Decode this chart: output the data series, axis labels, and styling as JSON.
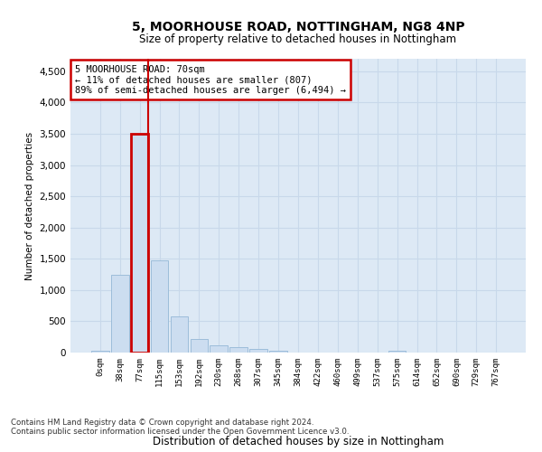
{
  "title_line1": "5, MOORHOUSE ROAD, NOTTINGHAM, NG8 4NP",
  "title_line2": "Size of property relative to detached houses in Nottingham",
  "xlabel": "Distribution of detached houses by size in Nottingham",
  "ylabel": "Number of detached properties",
  "footnote1": "Contains HM Land Registry data © Crown copyright and database right 2024.",
  "footnote2": "Contains public sector information licensed under the Open Government Licence v3.0.",
  "bar_labels": [
    "0sqm",
    "38sqm",
    "77sqm",
    "115sqm",
    "153sqm",
    "192sqm",
    "230sqm",
    "268sqm",
    "307sqm",
    "345sqm",
    "384sqm",
    "422sqm",
    "460sqm",
    "499sqm",
    "537sqm",
    "575sqm",
    "614sqm",
    "652sqm",
    "690sqm",
    "729sqm",
    "767sqm"
  ],
  "bar_values": [
    30,
    1250,
    3500,
    1470,
    580,
    220,
    110,
    90,
    55,
    30,
    5,
    0,
    0,
    0,
    0,
    30,
    0,
    0,
    0,
    0,
    0
  ],
  "bar_color": "#ccddf0",
  "bar_edge_color": "#9dbdda",
  "highlight_bar_index": 2,
  "highlight_bar_edge_color": "#cc0000",
  "annotation_box_text": "5 MOORHOUSE ROAD: 70sqm\n← 11% of detached houses are smaller (807)\n89% of semi-detached houses are larger (6,494) →",
  "ylim_max": 4700,
  "yticks": [
    0,
    500,
    1000,
    1500,
    2000,
    2500,
    3000,
    3500,
    4000,
    4500
  ],
  "grid_color": "#c8d8ea",
  "background_color": "#dde9f5",
  "red_line_color": "#cc0000"
}
